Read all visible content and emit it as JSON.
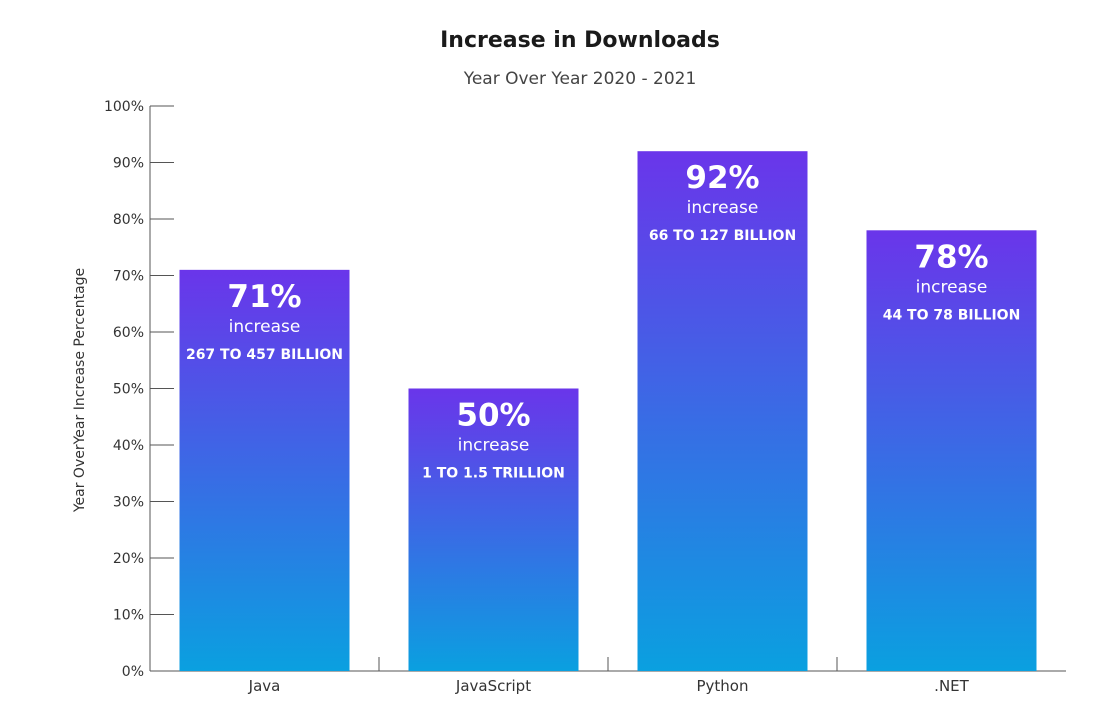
{
  "chart_data": {
    "type": "bar",
    "title": "Increase in Downloads",
    "subtitle": "Year Over Year 2020 - 2021",
    "xlabel": "",
    "ylabel": "Year OverYear Increase Percentage",
    "ylim": [
      0,
      100
    ],
    "y_ticks": [
      0,
      10,
      20,
      30,
      40,
      50,
      60,
      70,
      80,
      90,
      100
    ],
    "y_tick_labels": [
      "0%",
      "10%",
      "20%",
      "30%",
      "40%",
      "50%",
      "60%",
      "70%",
      "80%",
      "90%",
      "100%"
    ],
    "categories": [
      "Java",
      "JavaScript",
      "Python",
      ".NET"
    ],
    "values": [
      71,
      50,
      92,
      78
    ],
    "data_labels": [
      "71%",
      "50%",
      "92%",
      "78%"
    ],
    "label_word": "increase",
    "annotations": [
      "267 TO 457 BILLION",
      "1 TO 1.5 TRILLION",
      "66 TO 127 BILLION",
      "44 TO 78 BILLION"
    ],
    "colors": {
      "bar_top": "#6a35ea",
      "bar_bottom": "#0aa0e0",
      "axis": "#555555"
    },
    "grid": false,
    "legend": "none"
  }
}
